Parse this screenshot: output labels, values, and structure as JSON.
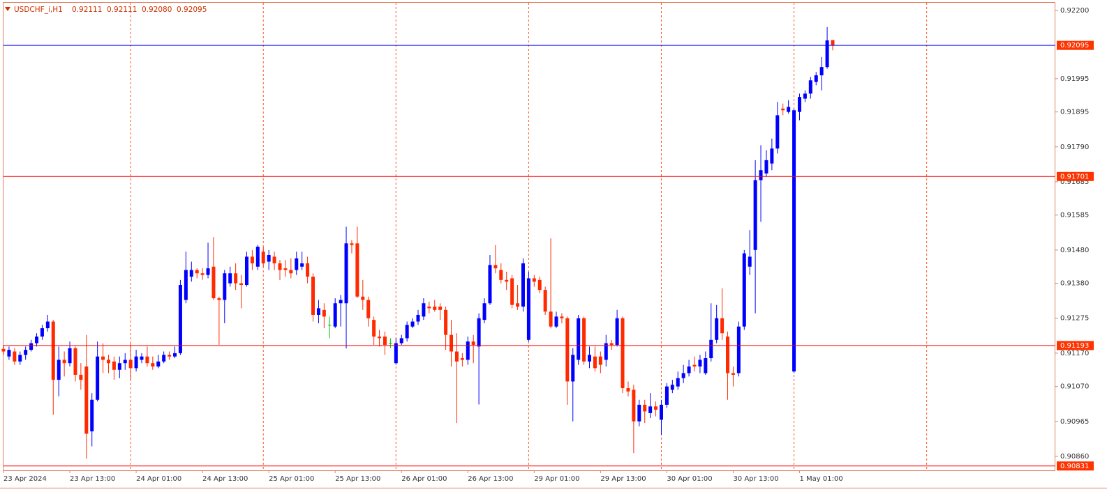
{
  "header": {
    "symbol": "USDCHF_i,H1",
    "ohlc": [
      "0.92111",
      "0.92111",
      "0.92080",
      "0.92095"
    ]
  },
  "chart_data": {
    "type": "candlestick",
    "categories": [
      "23 Apr 2024",
      null,
      null,
      null,
      null,
      null,
      null,
      null,
      null,
      null,
      null,
      null,
      "23 Apr 13:00",
      null,
      null,
      null,
      null,
      null,
      null,
      null,
      null,
      null,
      null,
      null,
      "24 Apr 01:00",
      null,
      null,
      null,
      null,
      null,
      null,
      null,
      null,
      null,
      null,
      null,
      "24 Apr 13:00",
      null,
      null,
      null,
      null,
      null,
      null,
      null,
      null,
      null,
      null,
      null,
      "25 Apr 01:00",
      null,
      null,
      null,
      null,
      null,
      null,
      null,
      null,
      null,
      null,
      null,
      "25 Apr 13:00",
      null,
      null,
      null,
      null,
      null,
      null,
      null,
      null,
      null,
      null,
      null,
      "26 Apr 01:00",
      null,
      null,
      null,
      null,
      null,
      null,
      null,
      null,
      null,
      null,
      null,
      "26 Apr 13:00",
      null,
      null,
      null,
      null,
      null,
      null,
      null,
      null,
      null,
      null,
      null,
      "29 Apr 01:00",
      null,
      null,
      null,
      null,
      null,
      null,
      null,
      null,
      null,
      null,
      null,
      "29 Apr 13:00",
      null,
      null,
      null,
      null,
      null,
      null,
      null,
      null,
      null,
      null,
      null,
      "30 Apr 01:00",
      null,
      null,
      null,
      null,
      null,
      null,
      null,
      null,
      null,
      null,
      null,
      "30 Apr 13:00",
      null,
      null,
      null,
      null,
      null,
      null,
      null,
      null,
      null,
      null,
      null,
      "1 May 01:00",
      null,
      null,
      null,
      null,
      null,
      null
    ],
    "open": [
      0.91183,
      0.9116,
      0.91175,
      0.91145,
      0.91165,
      0.9118,
      0.912,
      0.9122,
      0.91245,
      0.91265,
      0.9109,
      0.9115,
      0.9114,
      0.91185,
      0.91105,
      0.9113,
      0.90935,
      0.9103,
      0.9116,
      0.9115,
      0.91145,
      0.9112,
      0.9114,
      0.9115,
      0.91125,
      0.9115,
      0.9116,
      0.9114,
      0.9113,
      0.91145,
      0.91165,
      0.9116,
      0.9117,
      0.9133,
      0.914,
      0.9142,
      0.9141,
      0.91405,
      0.9143,
      0.91335,
      0.9133,
      0.9138,
      0.9141,
      0.9138,
      0.91375,
      0.9146,
      0.9143,
      0.91475,
      0.91445,
      0.9146,
      0.9144,
      0.91425,
      0.9142,
      0.9142,
      0.9143,
      0.9144,
      0.914,
      0.91285,
      0.913,
      0.91255,
      0.9125,
      0.9132,
      0.9132,
      0.915,
      0.915,
      0.9134,
      0.9133,
      0.9127,
      0.9122,
      0.9122,
      0.912,
      0.9114,
      0.912,
      0.91215,
      0.9125,
      0.91265,
      0.9128,
      0.9131,
      0.9131,
      0.9131,
      0.913,
      0.91225,
      0.91175,
      0.91155,
      0.9115,
      0.91205,
      0.9119,
      0.9127,
      0.9132,
      0.91435,
      0.9142,
      0.9139,
      0.91395,
      0.9132,
      0.9131,
      0.9121,
      0.91395,
      0.9139,
      0.9136,
      0.91295,
      0.9125,
      0.9128,
      0.91275,
      0.91085,
      0.9115,
      0.91275,
      0.91145,
      0.9116,
      0.9116,
      0.9115,
      0.912,
      0.91195,
      0.91275,
      0.91065,
      0.9106,
      0.90965,
      0.91015,
      0.9099,
      0.9101,
      0.9097,
      0.91015,
      0.9106,
      0.9107,
      0.91095,
      0.9111,
      0.91135,
      0.9113,
      0.9111,
      0.91155,
      0.9121,
      0.91275,
      0.9122,
      0.9111,
      0.9111,
      0.9125,
      0.9143,
      0.9148,
      0.9169,
      0.9171,
      0.9174,
      0.91785,
      0.91905,
      0.91895,
      0.91115,
      0.91895,
      0.91935,
      0.9195,
      0.91985,
      0.92005,
      0.9203,
      0.92111
    ],
    "high": [
      0.91195,
      0.9119,
      0.91185,
      0.91175,
      0.9119,
      0.9121,
      0.9123,
      0.91255,
      0.91285,
      0.9127,
      0.9119,
      0.91175,
      0.91205,
      0.9119,
      0.9114,
      0.91225,
      0.9105,
      0.91205,
      0.912,
      0.91165,
      0.9116,
      0.9116,
      0.9117,
      0.912,
      0.9118,
      0.9117,
      0.9119,
      0.9116,
      0.91165,
      0.91175,
      0.91175,
      0.9119,
      0.9139,
      0.91475,
      0.91445,
      0.91425,
      0.91425,
      0.91502,
      0.91519,
      0.9134,
      0.9142,
      0.9143,
      0.9144,
      0.91405,
      0.91475,
      0.9148,
      0.91495,
      0.9149,
      0.9148,
      0.91475,
      0.9145,
      0.9145,
      0.91455,
      0.91475,
      0.91475,
      0.9146,
      0.9141,
      0.9133,
      0.9132,
      0.9128,
      0.91335,
      0.91345,
      0.9155,
      0.9151,
      0.9155,
      0.9139,
      0.9134,
      0.9128,
      0.9124,
      0.91235,
      0.91215,
      0.91215,
      0.91225,
      0.91265,
      0.91275,
      0.913,
      0.91335,
      0.91325,
      0.9133,
      0.9132,
      0.9131,
      0.9127,
      0.9123,
      0.9117,
      0.9122,
      0.91225,
      0.9129,
      0.91335,
      0.91465,
      0.91495,
      0.9144,
      0.91415,
      0.91405,
      0.91375,
      0.91455,
      0.91415,
      0.91405,
      0.914,
      0.9137,
      0.91515,
      0.91295,
      0.9129,
      0.9128,
      0.91185,
      0.91285,
      0.9128,
      0.9119,
      0.9119,
      0.91175,
      0.91225,
      0.9121,
      0.913,
      0.9128,
      0.91085,
      0.91075,
      0.9103,
      0.9103,
      0.9105,
      0.91025,
      0.9103,
      0.9108,
      0.9109,
      0.91115,
      0.91135,
      0.9115,
      0.9116,
      0.91165,
      0.91175,
      0.9132,
      0.91315,
      0.91365,
      0.91235,
      0.9113,
      0.91265,
      0.9148,
      0.9154,
      0.9175,
      0.91795,
      0.9178,
      0.91815,
      0.91925,
      0.9192,
      0.9193,
      0.91905,
      0.9195,
      0.9196,
      0.92,
      0.92015,
      0.9206,
      0.9215,
      0.92111
    ],
    "low": [
      0.91165,
      0.9115,
      0.91135,
      0.91135,
      0.9115,
      0.91175,
      0.9119,
      0.9121,
      0.91235,
      0.90985,
      0.9104,
      0.911,
      0.9113,
      0.91085,
      0.9106,
      0.90853,
      0.9089,
      0.91025,
      0.9111,
      0.9111,
      0.9109,
      0.91095,
      0.9112,
      0.9109,
      0.91115,
      0.9114,
      0.9113,
      0.9112,
      0.91125,
      0.9114,
      0.9115,
      0.91155,
      0.91165,
      0.9132,
      0.91385,
      0.91395,
      0.9139,
      0.91395,
      0.9133,
      0.91195,
      0.9126,
      0.9137,
      0.9136,
      0.91305,
      0.9137,
      0.9142,
      0.9142,
      0.9143,
      0.9142,
      0.9142,
      0.9139,
      0.914,
      0.91395,
      0.91405,
      0.9142,
      0.9138,
      0.91265,
      0.9126,
      0.91245,
      0.91215,
      0.91245,
      0.9125,
      0.91184,
      0.9147,
      0.91335,
      0.913,
      0.9125,
      0.91195,
      0.9119,
      0.91165,
      0.91185,
      0.91135,
      0.91195,
      0.91205,
      0.91245,
      0.91255,
      0.9127,
      0.9129,
      0.91295,
      0.9127,
      0.9118,
      0.9113,
      0.9096,
      0.9113,
      0.91135,
      0.9114,
      0.91016,
      0.9126,
      0.91315,
      0.9141,
      0.9138,
      0.9136,
      0.91305,
      0.913,
      0.91295,
      0.91205,
      0.9137,
      0.9135,
      0.91285,
      0.91245,
      0.91245,
      0.9126,
      0.91015,
      0.90965,
      0.91135,
      0.91135,
      0.91125,
      0.91115,
      0.9111,
      0.9113,
      0.9118,
      0.9119,
      0.9105,
      0.9104,
      0.9087,
      0.9095,
      0.9096,
      0.90975,
      0.9098,
      0.90925,
      0.91005,
      0.9105,
      0.9106,
      0.9108,
      0.911,
      0.91115,
      0.9111,
      0.91105,
      0.91145,
      0.912,
      0.9121,
      0.9103,
      0.9107,
      0.911,
      0.9124,
      0.91405,
      0.9129,
      0.91565,
      0.917,
      0.9172,
      0.9177,
      0.91885,
      0.9189,
      0.9111,
      0.9187,
      0.91925,
      0.91935,
      0.91975,
      0.9196,
      0.92025,
      0.9208
    ],
    "close": [
      0.91175,
      0.9118,
      0.91145,
      0.91165,
      0.9118,
      0.912,
      0.9122,
      0.91245,
      0.91265,
      0.9109,
      0.9115,
      0.9114,
      0.91185,
      0.91105,
      0.9109,
      0.90928,
      0.9103,
      0.9116,
      0.9115,
      0.9114,
      0.9112,
      0.9114,
      0.9115,
      0.91125,
      0.9116,
      0.9116,
      0.9114,
      0.9113,
      0.91145,
      0.91165,
      0.9116,
      0.9117,
      0.91375,
      0.9142,
      0.9142,
      0.9141,
      0.91405,
      0.91425,
      0.91335,
      0.9133,
      0.9141,
      0.9141,
      0.9138,
      0.91375,
      0.9146,
      0.9144,
      0.9149,
      0.9144,
      0.91465,
      0.9144,
      0.9142,
      0.9142,
      0.9141,
      0.91455,
      0.9144,
      0.914,
      0.91285,
      0.91305,
      0.9128,
      0.91255,
      0.9132,
      0.9133,
      0.915,
      0.91495,
      0.9134,
      0.9133,
      0.91275,
      0.9122,
      0.91215,
      0.91195,
      0.912,
      0.912,
      0.91215,
      0.91255,
      0.91265,
      0.91285,
      0.9132,
      0.91305,
      0.913,
      0.913,
      0.91225,
      0.91175,
      0.91145,
      0.9115,
      0.91205,
      0.91195,
      0.91275,
      0.9132,
      0.91435,
      0.91425,
      0.9139,
      0.91385,
      0.91315,
      0.9131,
      0.9144,
      0.91395,
      0.91385,
      0.9136,
      0.91295,
      0.9125,
      0.9128,
      0.91275,
      0.91085,
      0.91165,
      0.91275,
      0.91145,
      0.91165,
      0.91125,
      0.91135,
      0.912,
      0.91195,
      0.91275,
      0.91065,
      0.91055,
      0.90965,
      0.91015,
      0.90995,
      0.9101,
      0.91,
      0.91015,
      0.9107,
      0.91075,
      0.91095,
      0.9111,
      0.9113,
      0.9113,
      0.9115,
      0.91155,
      0.9121,
      0.91275,
      0.9123,
      0.9111,
      0.91105,
      0.9125,
      0.9147,
      0.9146,
      0.9169,
      0.9172,
      0.9175,
      0.91785,
      0.91885,
      0.919,
      0.9191,
      0.919,
      0.9194,
      0.9195,
      0.9199,
      0.92005,
      0.9203,
      0.9211,
      0.92095
    ],
    "up_color": "#0000ff",
    "down_color": "#ff2a00",
    "doji_color": "#00cc00",
    "ylim": [
      0.90818,
      0.92223
    ],
    "yticks": [
      {
        "value": 0.922,
        "label": "0.92200"
      },
      0.91995,
      0.91895,
      {
        "value": 0.9179,
        "label": "0.91790"
      },
      0.91685,
      0.91585,
      {
        "value": 0.9148,
        "label": "0.91480"
      },
      {
        "value": 0.9138,
        "label": "0.91380"
      },
      0.91275,
      {
        "value": 0.9117,
        "label": "0.91170"
      },
      {
        "value": 0.9107,
        "label": "0.91070"
      },
      0.90965,
      {
        "value": 0.9086,
        "label": "0.90860"
      }
    ],
    "price_lines": [
      {
        "value": 0.92095,
        "color": "#0000ff"
      },
      {
        "value": 0.91701,
        "color": "#ff0000"
      },
      {
        "value": 0.91193,
        "color": "#ff0000"
      },
      {
        "value": 0.90831,
        "color": "#ff0000"
      }
    ],
    "tag_color": "#ff3300",
    "separator_color": "#ff5522"
  }
}
